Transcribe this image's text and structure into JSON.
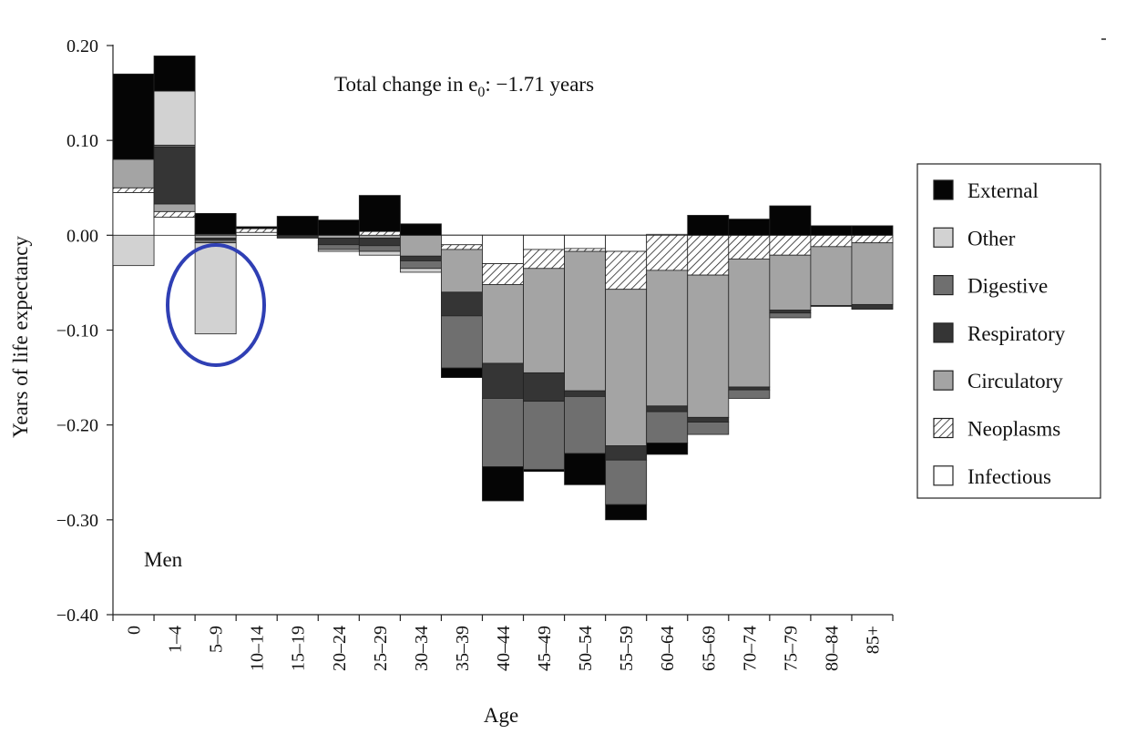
{
  "chart_data": {
    "type": "bar",
    "stacked": true,
    "annotation": "Total change in e",
    "annotation_subscript": "0",
    "annotation_value": ": −1.71 years",
    "panel_label": "Men",
    "xlabel": "Age",
    "ylabel": "Years of life expectancy",
    "ylim": [
      -0.4,
      0.2
    ],
    "yticks": [
      {
        "value": 0.2,
        "label": "0.20"
      },
      {
        "value": 0.1,
        "label": "0.10"
      },
      {
        "value": 0.0,
        "label": "0.00"
      },
      {
        "value": -0.1,
        "label": "−0.10"
      },
      {
        "value": -0.2,
        "label": "−0.20"
      },
      {
        "value": -0.3,
        "label": "−0.30"
      },
      {
        "value": -0.4,
        "label": "−0.40"
      }
    ],
    "categories": [
      "0",
      "1–4",
      "5–9",
      "10–14",
      "15–19",
      "20–24",
      "25–29",
      "30–34",
      "35–39",
      "40–44",
      "45–49",
      "50–54",
      "55–59",
      "60–64",
      "65–69",
      "70–74",
      "75–79",
      "80–84",
      "85+"
    ],
    "legend_position": "right",
    "highlight": {
      "category": "5–9",
      "color": "#2f3fb4"
    },
    "series": [
      {
        "name": "Infectious",
        "color": "#ffffff",
        "pattern": "none",
        "values": [
          0.045,
          0.019,
          0.001,
          0.003,
          0.0,
          0.0,
          0.0,
          0.0,
          -0.01,
          -0.03,
          -0.015,
          -0.014,
          -0.017,
          0.001,
          0.0,
          0.0,
          0.0,
          0.0,
          0.0
        ]
      },
      {
        "name": "Neoplasms",
        "color": "#ffffff",
        "pattern": "hatch",
        "values": [
          0.005,
          0.006,
          0.0,
          0.004,
          0.0,
          0.0,
          0.004,
          0.0,
          -0.005,
          -0.022,
          -0.02,
          -0.003,
          -0.04,
          -0.037,
          -0.042,
          -0.025,
          -0.021,
          -0.012,
          -0.008
        ]
      },
      {
        "name": "Circulatory",
        "color": "#a4a4a4",
        "pattern": "none",
        "values": [
          0.03,
          0.008,
          -0.003,
          0.0,
          0.0,
          -0.003,
          -0.003,
          -0.022,
          -0.045,
          -0.083,
          -0.11,
          -0.147,
          -0.165,
          -0.143,
          -0.15,
          -0.135,
          -0.058,
          -0.062,
          -0.065
        ]
      },
      {
        "name": "Respiratory",
        "color": "#353535",
        "pattern": "none",
        "values": [
          0.0,
          0.06,
          -0.002,
          0.0,
          -0.003,
          -0.007,
          -0.008,
          -0.005,
          -0.025,
          -0.037,
          -0.03,
          -0.006,
          -0.015,
          -0.006,
          -0.005,
          -0.003,
          -0.003,
          -0.001,
          -0.005
        ]
      },
      {
        "name": "Digestive",
        "color": "#6f6f6f",
        "pattern": "none",
        "values": [
          0.0,
          0.002,
          -0.003,
          0.0,
          0.0,
          -0.005,
          -0.006,
          -0.008,
          -0.055,
          -0.072,
          -0.072,
          -0.06,
          -0.047,
          -0.033,
          -0.013,
          -0.009,
          -0.005,
          0.0,
          0.0
        ]
      },
      {
        "name": "Other",
        "color": "#d2d2d2",
        "pattern": "none",
        "values": [
          -0.032,
          0.057,
          -0.096,
          0.0,
          0.0,
          -0.002,
          -0.004,
          -0.004,
          0.0,
          0.0,
          0.0,
          0.0,
          0.0,
          0.0,
          0.0,
          0.0,
          0.0,
          0.0,
          0.0
        ]
      },
      {
        "name": "External",
        "color": "#050505",
        "pattern": "none",
        "values": [
          0.09,
          0.037,
          0.022,
          0.002,
          0.02,
          0.016,
          0.038,
          0.012,
          -0.01,
          -0.036,
          -0.002,
          -0.033,
          -0.016,
          -0.012,
          0.021,
          0.017,
          0.031,
          0.01,
          0.01
        ]
      }
    ],
    "legend_order": [
      "External",
      "Other",
      "Digestive",
      "Respiratory",
      "Circulatory",
      "Neoplasms",
      "Infectious"
    ]
  }
}
